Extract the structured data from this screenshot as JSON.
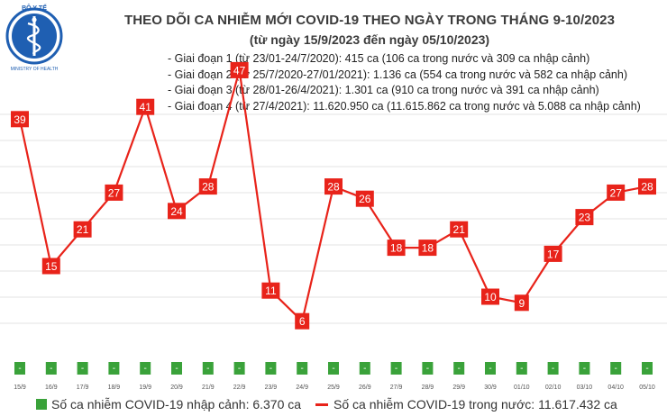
{
  "header": {
    "logo_text_top": "BỘ Y TẾ",
    "logo_text_bottom": "MINISTRY OF HEALTH",
    "title": "THEO DÕI CA NHIỄM MỚI COVID-19 THEO NGÀY TRONG THÁNG 9-10/2023",
    "subtitle": "(từ ngày 15/9/2023 đến ngày 05/10/2023)"
  },
  "phases": [
    "- Giai đoạn 1 (từ 23/01-24/7/2020): 415 ca (106 ca trong nước và 309 ca nhập cảnh)",
    "- Giai đoạn 2 (từ 25/7/2020-27/01/2021): 1.136 ca (554 ca trong nước và 582 ca nhập cảnh)",
    "- Giai đoạn 3 (từ 28/01-26/4/2021): 1.301 ca (910 ca trong nước và 391 ca nhập cảnh)",
    "- Giai đoạn 4 (từ 27/4/2021): 11.620.950 ca (11.615.862 ca trong nước và 5.088 ca nhập cảnh)"
  ],
  "legend": {
    "imported": "Số ca nhiễm COVID-19 nhập cảnh: 6.370 ca",
    "domestic": "Số ca nhiễm COVID-19 trong nước: 11.617.432 ca"
  },
  "colors": {
    "line": "#e8231a",
    "label_box": "#e8231a",
    "import_box": "#3aa23a",
    "grid": "#e3e3e3"
  },
  "chart_data": {
    "type": "line",
    "categories": [
      "15/9",
      "16/9",
      "17/9",
      "18/9",
      "19/9",
      "20/9",
      "21/9",
      "22/9",
      "23/9",
      "24/9",
      "25/9",
      "26/9",
      "27/9",
      "28/9",
      "29/9",
      "30/9",
      "01/10",
      "02/10",
      "03/10",
      "04/10",
      "05/10"
    ],
    "series": [
      {
        "name": "Số ca nhiễm COVID-19 trong nước: 11.617.432 ca",
        "type": "line",
        "values": [
          39,
          15,
          21,
          27,
          41,
          24,
          28,
          47,
          11,
          6,
          28,
          26,
          18,
          18,
          21,
          10,
          9,
          17,
          23,
          27,
          28
        ]
      },
      {
        "name": "Số ca nhiễm COVID-19 nhập cảnh: 6.370 ca",
        "type": "bar",
        "values": [
          "-",
          "-",
          "-",
          "-",
          "-",
          "-",
          "-",
          "-",
          "-",
          "-",
          "-",
          "-",
          "-",
          "-",
          "-",
          "-",
          "-",
          "-",
          "-",
          "-",
          "-"
        ]
      }
    ],
    "ylim": [
      0,
      50
    ],
    "grid": true,
    "legend_position": "bottom"
  }
}
